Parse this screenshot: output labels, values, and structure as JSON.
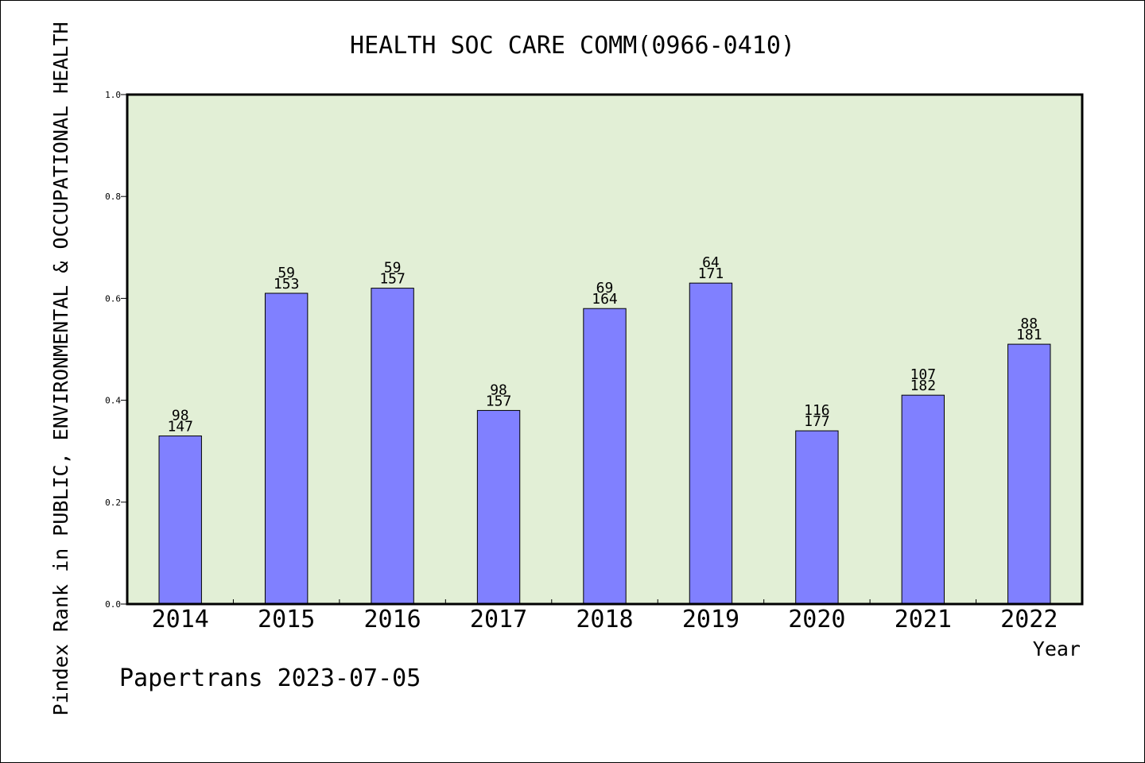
{
  "chart_data": {
    "type": "bar",
    "title": "HEALTH SOC CARE COMM(0966-0410)",
    "xlabel": "Year",
    "ylabel": "Pindex Rank in PUBLIC, ENVIRONMENTAL & OCCUPATIONAL HEALTH",
    "ylim": [
      0,
      1.0
    ],
    "yticks": [
      "0.0",
      "0.2",
      "0.4",
      "0.6",
      "0.8",
      "1.0"
    ],
    "categories": [
      "2014",
      "2015",
      "2016",
      "2017",
      "2018",
      "2019",
      "2020",
      "2021",
      "2022"
    ],
    "values": [
      0.33,
      0.61,
      0.62,
      0.38,
      0.58,
      0.63,
      0.34,
      0.41,
      0.51
    ],
    "rank_labels": [
      "98",
      "59",
      "59",
      "98",
      "69",
      "64",
      "116",
      "107",
      "88"
    ],
    "total_labels": [
      "147",
      "153",
      "157",
      "157",
      "164",
      "171",
      "177",
      "182",
      "181"
    ],
    "grid": false,
    "colors": {
      "bar": "#8080ff",
      "plot_background": "#e2efd6"
    }
  },
  "footer": "Papertrans 2023-07-05"
}
